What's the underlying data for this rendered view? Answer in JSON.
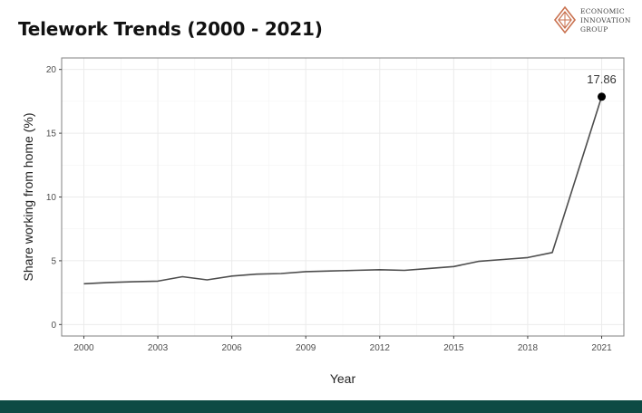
{
  "header": {
    "title": "Telework Trends (2000 - 2021)"
  },
  "logo": {
    "lines": [
      "ECONOMIC",
      "INNOVATION",
      "GROUP"
    ],
    "icon": "diamond-logo-icon",
    "color": "#c9714f"
  },
  "chart_data": {
    "type": "line",
    "title": "",
    "xlabel": "Year",
    "ylabel": "Share working from home (%)",
    "xlim": [
      1999.1,
      2021.9
    ],
    "ylim": [
      -0.9,
      20.9
    ],
    "xticks": [
      2000,
      2003,
      2006,
      2009,
      2012,
      2015,
      2018,
      2021
    ],
    "yticks": [
      0,
      5,
      10,
      15,
      20
    ],
    "grid": true,
    "x": [
      2000,
      2001,
      2002,
      2003,
      2004,
      2005,
      2006,
      2007,
      2008,
      2009,
      2010,
      2011,
      2012,
      2013,
      2014,
      2015,
      2016,
      2017,
      2018,
      2019,
      2021
    ],
    "series": [
      {
        "name": "",
        "values": [
          3.2,
          3.3,
          3.35,
          3.4,
          3.75,
          3.5,
          3.8,
          3.95,
          4.0,
          4.15,
          4.2,
          4.25,
          4.3,
          4.25,
          4.4,
          4.55,
          4.95,
          5.1,
          5.25,
          5.65,
          17.86
        ],
        "color": "#4d4d4d"
      }
    ],
    "highlight": {
      "x": 2021,
      "y": 17.86,
      "label": "17.86"
    }
  },
  "colors": {
    "footer": "#0d4a44",
    "panel_border": "#808080",
    "grid": "#ebebeb"
  }
}
